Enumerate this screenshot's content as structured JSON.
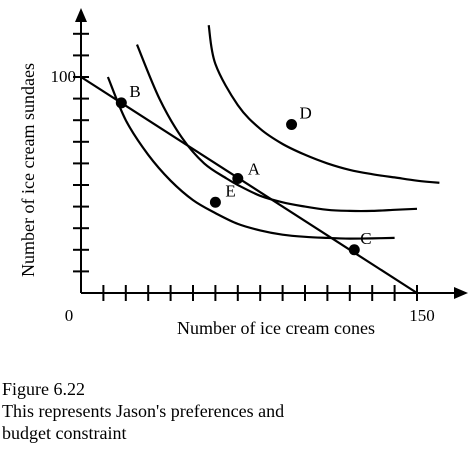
{
  "chart_data": {
    "type": "line",
    "title": "",
    "xlabel": "Number of ice cream cones",
    "ylabel": "Number of ice cream sundaes",
    "xlim": [
      0,
      170
    ],
    "ylim": [
      0,
      127
    ],
    "x_tick_labels": [
      {
        "value": 0,
        "text": "0"
      },
      {
        "value": 150,
        "text": "150"
      }
    ],
    "y_tick_labels": [
      {
        "value": 100,
        "text": "100"
      }
    ],
    "x_minor_ticks": [
      10,
      20,
      30,
      40,
      50,
      60,
      70,
      80,
      90,
      100,
      110,
      120,
      130,
      140,
      150
    ],
    "y_minor_ticks": [
      10,
      20,
      30,
      40,
      50,
      60,
      70,
      80,
      90,
      100,
      110,
      120
    ],
    "budget_line": {
      "x": [
        0,
        150
      ],
      "y": [
        100,
        0
      ]
    },
    "indifference_curves": [
      {
        "x": [
          12,
          20,
          30,
          40,
          50,
          60,
          70,
          80,
          90,
          100,
          110,
          120,
          130,
          140
        ],
        "y": [
          100,
          80,
          64,
          52,
          43,
          37,
          32,
          29,
          27,
          26,
          25.5,
          25.2,
          25.3,
          25.5
        ]
      },
      {
        "x": [
          25,
          35,
          45,
          55,
          65,
          70,
          80,
          90,
          100,
          110,
          120,
          130,
          140,
          150
        ],
        "y": [
          115,
          90,
          72,
          60,
          53,
          50,
          45,
          42,
          40,
          38.5,
          38,
          38,
          38.5,
          39
        ]
      },
      {
        "x": [
          57,
          60,
          70,
          80,
          90,
          100,
          110,
          120,
          130,
          140,
          150,
          160
        ],
        "y": [
          124,
          106,
          87,
          76,
          69,
          64,
          60,
          57,
          55,
          53.5,
          52,
          51
        ]
      }
    ],
    "points": [
      {
        "label": "A",
        "x": 70,
        "y": 53
      },
      {
        "label": "B",
        "x": 18,
        "y": 88
      },
      {
        "label": "C",
        "x": 122,
        "y": 20
      },
      {
        "label": "D",
        "x": 94,
        "y": 78
      },
      {
        "label": "E",
        "x": 60,
        "y": 42
      }
    ],
    "grid": false,
    "legend": "none"
  },
  "caption": {
    "line1": "Figure 6.22",
    "line2": "This represents Jason's preferences and",
    "line3": "budget constraint"
  }
}
